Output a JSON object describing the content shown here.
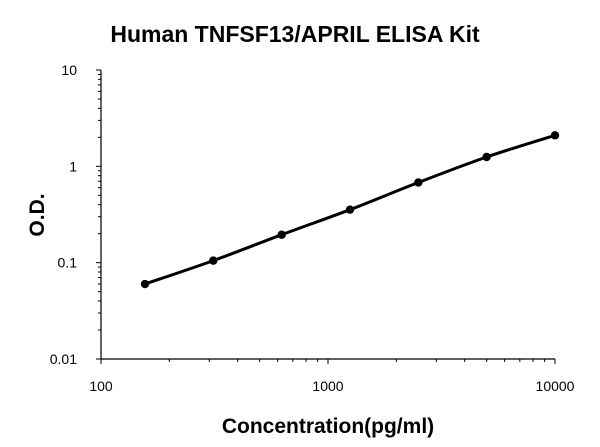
{
  "chart_data": {
    "type": "line",
    "title": "Human TNFSF13/APRIL ELISA Kit",
    "xlabel": "Concentration(pg/ml)",
    "ylabel": "O.D.",
    "x_scale": "log",
    "y_scale": "log",
    "xlim": [
      100,
      10000
    ],
    "ylim": [
      0.01,
      10
    ],
    "x_ticks": [
      100,
      1000,
      10000
    ],
    "x_tick_labels": [
      "100",
      "1000",
      "10000"
    ],
    "y_ticks": [
      0.01,
      0.1,
      1,
      10
    ],
    "y_tick_labels": [
      "0.01",
      "0.1",
      "1",
      "10"
    ],
    "grid": false,
    "legend": "none",
    "series": [
      {
        "x": [
          156.25,
          312.5,
          625,
          1250,
          2500,
          5000,
          10000
        ],
        "y": [
          0.06,
          0.105,
          0.195,
          0.355,
          0.68,
          1.25,
          2.1
        ],
        "color": "#000000"
      }
    ]
  }
}
